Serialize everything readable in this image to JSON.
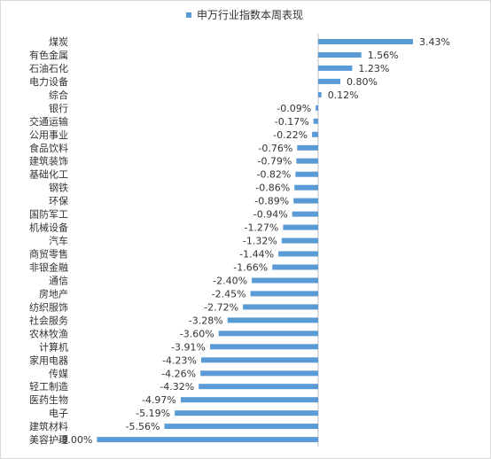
{
  "chart_data": {
    "type": "bar",
    "orientation": "horizontal",
    "legend": {
      "position": "top",
      "label": "申万行业指数本周表现"
    },
    "series": [
      {
        "name": "申万行业指数本周表现",
        "color": "#5b9bd5"
      }
    ],
    "grid": false,
    "xlim": [
      -8.0,
      3.43
    ],
    "value_format": "percent_2dp",
    "categories": [
      "煤炭",
      "有色金属",
      "石油石化",
      "电力设备",
      "综合",
      "银行",
      "交通运输",
      "公用事业",
      "食品饮料",
      "建筑装饰",
      "基础化工",
      "钢铁",
      "环保",
      "国防军工",
      "机械设备",
      "汽车",
      "商贸零售",
      "非银金融",
      "通信",
      "房地产",
      "纺织服饰",
      "社会服务",
      "农林牧渔",
      "计算机",
      "家用电器",
      "传媒",
      "轻工制造",
      "医药生物",
      "电子",
      "建筑材料",
      "美容护理"
    ],
    "values": [
      3.43,
      1.56,
      1.23,
      0.8,
      0.12,
      -0.09,
      -0.17,
      -0.22,
      -0.76,
      -0.79,
      -0.82,
      -0.86,
      -0.89,
      -0.94,
      -1.27,
      -1.32,
      -1.44,
      -1.66,
      -2.4,
      -2.45,
      -2.72,
      -3.28,
      -3.6,
      -3.91,
      -4.23,
      -4.26,
      -4.32,
      -4.97,
      -5.19,
      -5.56,
      -8.0
    ],
    "value_labels": [
      "3.43%",
      "1.56%",
      "1.23%",
      "0.80%",
      "0.12%",
      "-0.09%",
      "-0.17%",
      "-0.22%",
      "-0.76%",
      "-0.79%",
      "-0.82%",
      "-0.86%",
      "-0.89%",
      "-0.94%",
      "-1.27%",
      "-1.32%",
      "-1.44%",
      "-1.66%",
      "-2.40%",
      "-2.45%",
      "-2.72%",
      "-3.28%",
      "-3.60%",
      "-3.91%",
      "-4.23%",
      "-4.26%",
      "-4.32%",
      "-4.97%",
      "-5.19%",
      "-5.56%",
      "-8.00%"
    ]
  }
}
